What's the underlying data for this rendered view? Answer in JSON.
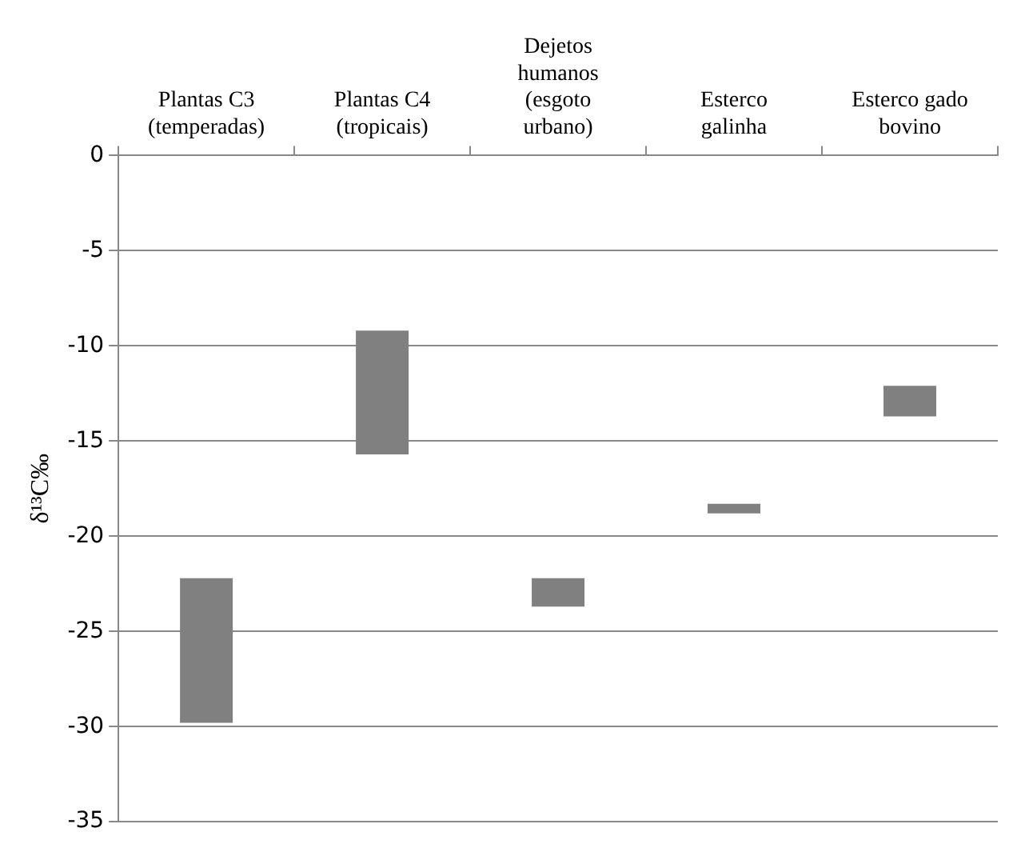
{
  "chart_data": {
    "type": "bar",
    "ylabel": "δ¹³C‰",
    "categories": [
      "Plantas C3 (temperadas)",
      "Plantas C4 (tropicais)",
      "Dejetos humanos (esgoto urbano)",
      "Esterco galinha",
      "Esterco gado bovino"
    ],
    "base": [
      -29.8,
      -15.7,
      -23.7,
      -18.8,
      -13.7
    ],
    "values": [
      7.6,
      6.5,
      1.5,
      0.5,
      1.6
    ],
    "color": "#808080",
    "ylim": [
      -35,
      0
    ],
    "yticks": [
      -35,
      -30,
      -25,
      -20,
      -15,
      -10,
      -5,
      0
    ],
    "grid": "y",
    "legend": false
  }
}
